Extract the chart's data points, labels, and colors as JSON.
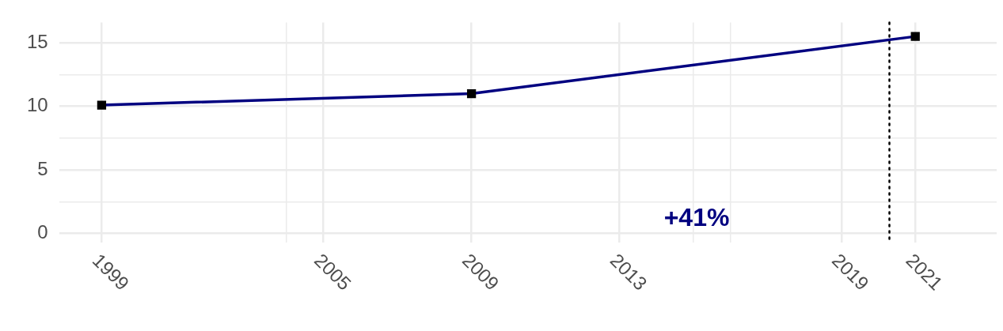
{
  "chart_data": {
    "type": "line",
    "x": [
      1999,
      2009,
      2021
    ],
    "series": [
      {
        "color": "#000080",
        "values": [
          10.1,
          11.0,
          15.5
        ]
      }
    ],
    "xlim": [
      1997.85,
      2023.2
    ],
    "xticks": [
      1999,
      {
        "value": 2004,
        "label": null
      },
      2005,
      2009,
      2013,
      {
        "value": 2015,
        "label": null
      },
      {
        "value": 2016,
        "label": null
      },
      2019,
      2021
    ],
    "ylim": [
      -0.7,
      16.6
    ],
    "yticks": [
      0,
      {
        "value": 2.5,
        "label": null
      },
      5,
      {
        "value": 7.5,
        "label": null
      },
      10,
      {
        "value": 12.5,
        "label": null
      },
      15
    ],
    "grid": true,
    "legend": false,
    "marker": "square",
    "line_style": "solid",
    "ref_lines": [
      {
        "axis": "x",
        "value": 2020.3,
        "color": "#000000",
        "line_style": "dotted"
      }
    ],
    "annotations": [
      "+41%"
    ]
  }
}
